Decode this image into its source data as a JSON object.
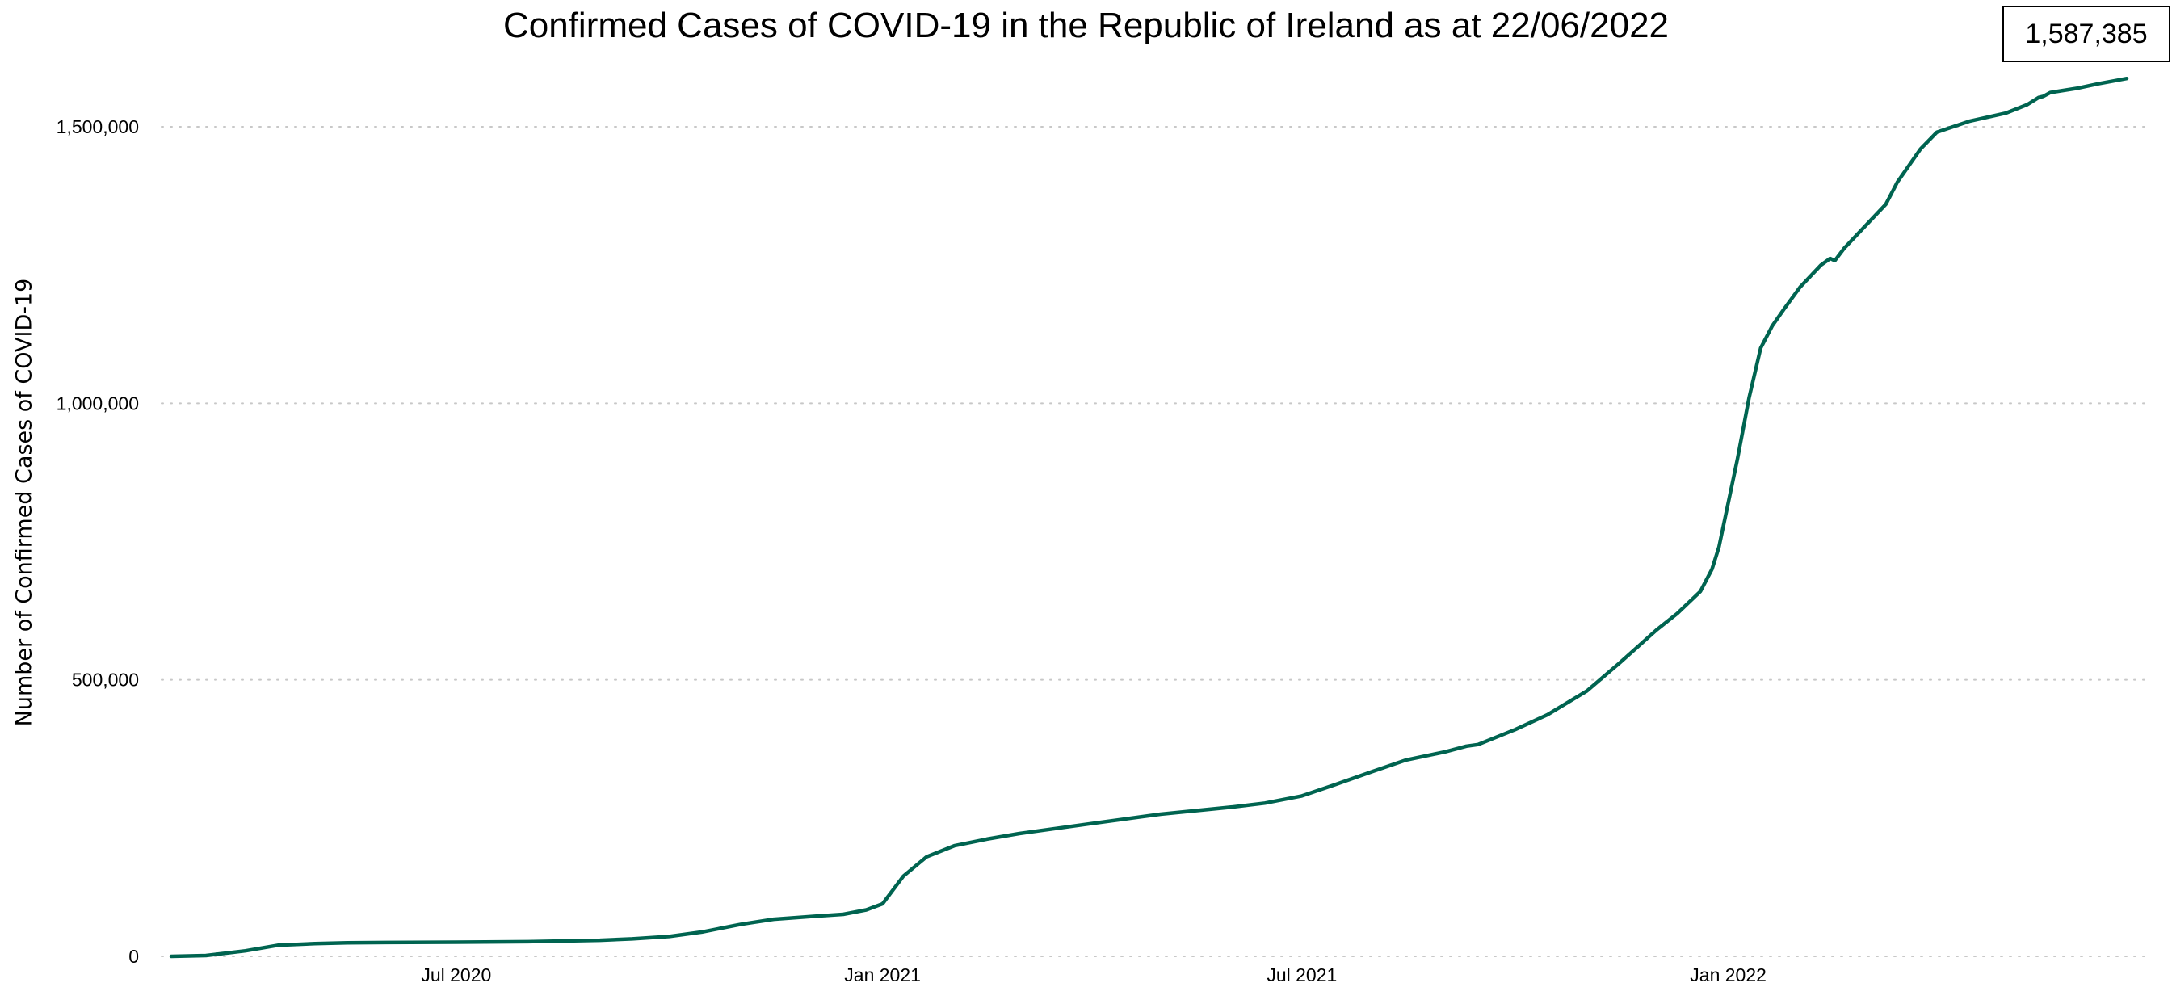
{
  "chart_data": {
    "type": "line",
    "title": "Confirmed Cases of COVID-19 in the Republic of Ireland as at 22/06/2022",
    "xlabel": "",
    "ylabel": "Number of Confirmed Cases of COVID-19",
    "ylim": [
      0,
      1600000
    ],
    "xlim": [
      "2020-02-29",
      "2022-06-22"
    ],
    "y_ticks": [
      {
        "value": 0,
        "label": "0"
      },
      {
        "value": 500000,
        "label": "500,000"
      },
      {
        "value": 1000000,
        "label": "1,000,000"
      },
      {
        "value": 1500000,
        "label": "1,500,000"
      }
    ],
    "x_ticks": [
      {
        "date": "2020-07-01",
        "label": "Jul 2020"
      },
      {
        "date": "2021-01-01",
        "label": "Jan 2021"
      },
      {
        "date": "2021-07-01",
        "label": "Jul 2021"
      },
      {
        "date": "2022-01-01",
        "label": "Jan 2022"
      }
    ],
    "grid": "horizontal dotted",
    "line_color": "#006450",
    "latest_value_label": "1,587,385",
    "series": [
      {
        "x": [
          "2020-02-29",
          "2020-03-15",
          "2020-04-01",
          "2020-04-15",
          "2020-05-01",
          "2020-05-15",
          "2020-06-01",
          "2020-07-01",
          "2020-08-01",
          "2020-09-01",
          "2020-09-15",
          "2020-10-01",
          "2020-10-15",
          "2020-11-01",
          "2020-11-15",
          "2020-12-01",
          "2020-12-15",
          "2020-12-25",
          "2021-01-01",
          "2021-01-10",
          "2021-01-20",
          "2021-02-01",
          "2021-02-15",
          "2021-03-01",
          "2021-04-01",
          "2021-05-01",
          "2021-06-01",
          "2021-06-15",
          "2021-07-01",
          "2021-07-15",
          "2021-08-01",
          "2021-08-15",
          "2021-09-01",
          "2021-09-10",
          "2021-09-15",
          "2021-10-01",
          "2021-10-15",
          "2021-11-01",
          "2021-11-15",
          "2021-12-01",
          "2021-12-10",
          "2021-12-20",
          "2021-12-25",
          "2021-12-28",
          "2022-01-01",
          "2022-01-05",
          "2022-01-10",
          "2022-01-15",
          "2022-01-20",
          "2022-01-25",
          "2022-02-01",
          "2022-02-10",
          "2022-02-14",
          "2022-02-16",
          "2022-02-20",
          "2022-03-01",
          "2022-03-10",
          "2022-03-15",
          "2022-03-25",
          "2022-04-01",
          "2022-04-15",
          "2022-05-01",
          "2022-05-10",
          "2022-05-15",
          "2022-05-17",
          "2022-05-20",
          "2022-06-01",
          "2022-06-10",
          "2022-06-15",
          "2022-06-22"
        ],
        "y": [
          0,
          1500,
          10000,
          20000,
          23000,
          24500,
          25000,
          25500,
          26500,
          29000,
          31500,
          36000,
          44000,
          58000,
          67000,
          72000,
          76000,
          84000,
          95000,
          145000,
          180000,
          200000,
          212000,
          222000,
          240000,
          257000,
          270000,
          277000,
          290000,
          310000,
          335000,
          355000,
          370000,
          380000,
          383000,
          410000,
          437000,
          480000,
          530000,
          590000,
          620000,
          660000,
          700000,
          740000,
          820000,
          900000,
          1010000,
          1100000,
          1140000,
          1170000,
          1210000,
          1250000,
          1262000,
          1258000,
          1280000,
          1320000,
          1360000,
          1400000,
          1460000,
          1490000,
          1510000,
          1525000,
          1540000,
          1553000,
          1555000,
          1562000,
          1570000,
          1578000,
          1582000,
          1587385
        ]
      }
    ]
  }
}
